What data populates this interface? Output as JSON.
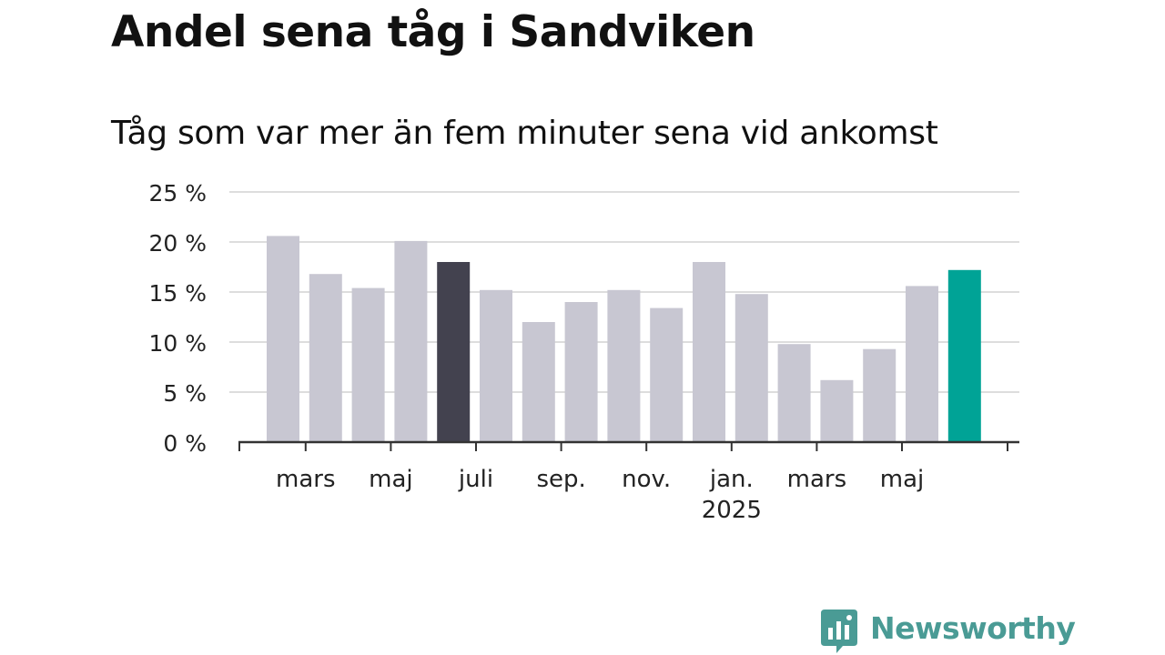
{
  "title": "Andel sena tåg i Sandviken",
  "subtitle": "Tåg som var mer än fem minuter sena vid ankomst",
  "brand": {
    "name": "Newsworthy",
    "icon": "newsworthy-chart-bubble-icon",
    "color": "#4a9b95"
  },
  "colors": {
    "default_bar": "#c8c7d2",
    "highlight_bar": "#43424f",
    "latest_bar": "#00a396",
    "grid": "#dddddd",
    "axis": "#333333"
  },
  "chart_data": {
    "type": "bar",
    "title": "Andel sena tåg i Sandviken",
    "subtitle": "Tåg som var mer än fem minuter sena vid ankomst",
    "xlabel": "",
    "ylabel": "",
    "ylim": [
      0,
      25
    ],
    "y_ticks": [
      0,
      5,
      10,
      15,
      20,
      25
    ],
    "y_tick_labels": [
      "0 %",
      "5 %",
      "10 %",
      "15 %",
      "20 %",
      "25 %"
    ],
    "grid": true,
    "categories": [
      "2024-02",
      "2024-03",
      "2024-04",
      "2024-05",
      "2024-06",
      "2024-07",
      "2024-08",
      "2024-09",
      "2024-10",
      "2024-11",
      "2024-12",
      "2025-01",
      "2025-02",
      "2025-03",
      "2025-04",
      "2025-05",
      "2025-06"
    ],
    "values": [
      20.6,
      16.8,
      15.4,
      20.1,
      18.0,
      15.2,
      12.0,
      14.0,
      15.2,
      13.4,
      18.0,
      14.8,
      9.8,
      6.2,
      9.3,
      15.6,
      17.2
    ],
    "bar_styles": [
      "default",
      "default",
      "default",
      "default",
      "highlight",
      "default",
      "default",
      "default",
      "default",
      "default",
      "default",
      "default",
      "default",
      "default",
      "default",
      "default",
      "latest"
    ],
    "x_tick_labels": [
      {
        "at": "2024-03",
        "label": "mars"
      },
      {
        "at": "2024-05",
        "label": "maj"
      },
      {
        "at": "2024-07",
        "label": "juli"
      },
      {
        "at": "2024-09",
        "label": "sep."
      },
      {
        "at": "2024-11",
        "label": "nov."
      },
      {
        "at": "2025-01",
        "label": "jan.",
        "sublabel": "2025"
      },
      {
        "at": "2025-03",
        "label": "mars"
      },
      {
        "at": "2025-05",
        "label": "maj"
      }
    ]
  }
}
